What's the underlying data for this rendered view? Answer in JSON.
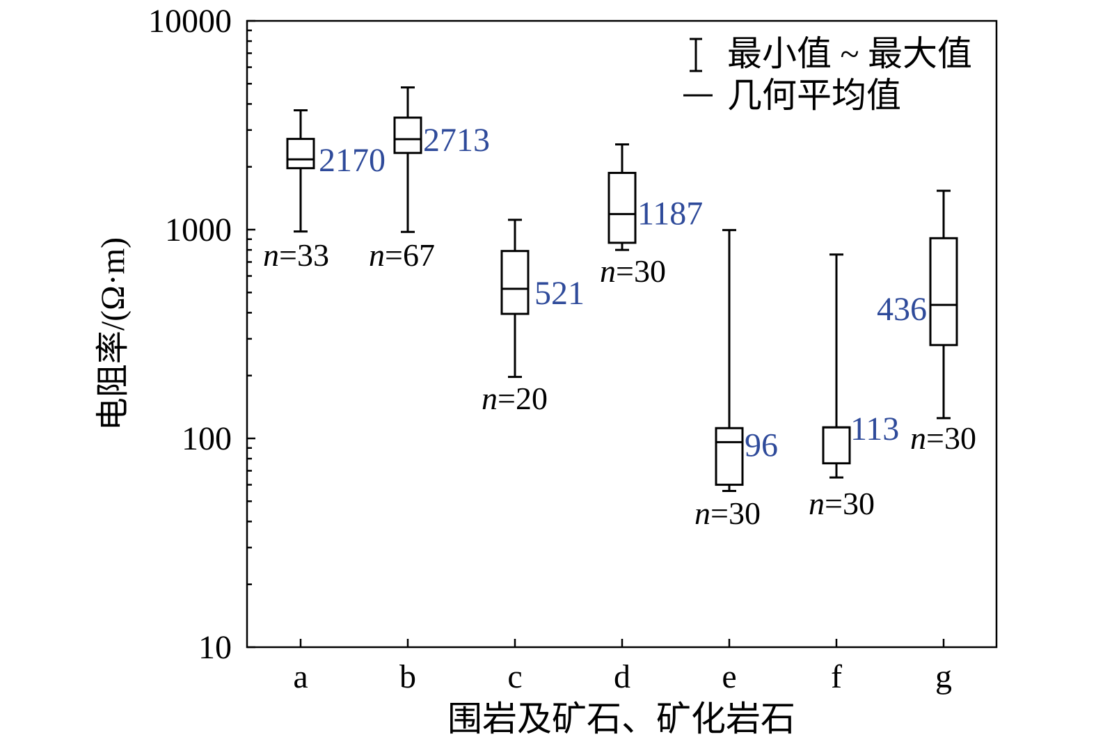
{
  "chart_data": {
    "type": "box",
    "categories": [
      "a",
      "b",
      "c",
      "d",
      "e",
      "f",
      "g"
    ],
    "xlabel": "围岩及矿石、矿化岩石",
    "ylabel": "电阻率/(Ω·m)",
    "yscale": "log",
    "ylim": [
      10,
      10000
    ],
    "yticks": [
      10,
      100,
      1000,
      10000
    ],
    "grid": false,
    "legend": {
      "position": "top-right",
      "range_label": "最小值 ~ 最大值",
      "mean_label": "几何平均值"
    },
    "n_prefix": "n",
    "mean_color": "#2e4a9a",
    "series": [
      {
        "category": "a",
        "min": 980,
        "q1": 1970,
        "mean": 2170,
        "q3": 2720,
        "max": 3730,
        "n": 33,
        "mean_label": "2170",
        "n_text": "=33"
      },
      {
        "category": "b",
        "min": 975,
        "q1": 2330,
        "mean": 2713,
        "q3": 3440,
        "max": 4800,
        "n": 67,
        "mean_label": "2713",
        "n_text": "=67"
      },
      {
        "category": "c",
        "min": 197,
        "q1": 395,
        "mean": 521,
        "q3": 790,
        "max": 1115,
        "n": 20,
        "mean_label": "521",
        "n_text": "=20"
      },
      {
        "category": "d",
        "min": 800,
        "q1": 865,
        "mean": 1187,
        "q3": 1870,
        "max": 2560,
        "n": 30,
        "mean_label": "1187",
        "n_text": "=30"
      },
      {
        "category": "e",
        "min": 56,
        "q1": 60,
        "mean": 96,
        "q3": 112,
        "max": 995,
        "n": 30,
        "mean_label": "96",
        "n_text": "=30"
      },
      {
        "category": "f",
        "min": 65,
        "q1": 76,
        "mean": 113,
        "q3": 113,
        "max": 760,
        "n": 30,
        "mean_label": "113",
        "n_text": "=30"
      },
      {
        "category": "g",
        "min": 125,
        "q1": 280,
        "mean": 436,
        "q3": 910,
        "max": 1535,
        "n": 30,
        "mean_label": "436",
        "n_text": "=30"
      }
    ]
  }
}
